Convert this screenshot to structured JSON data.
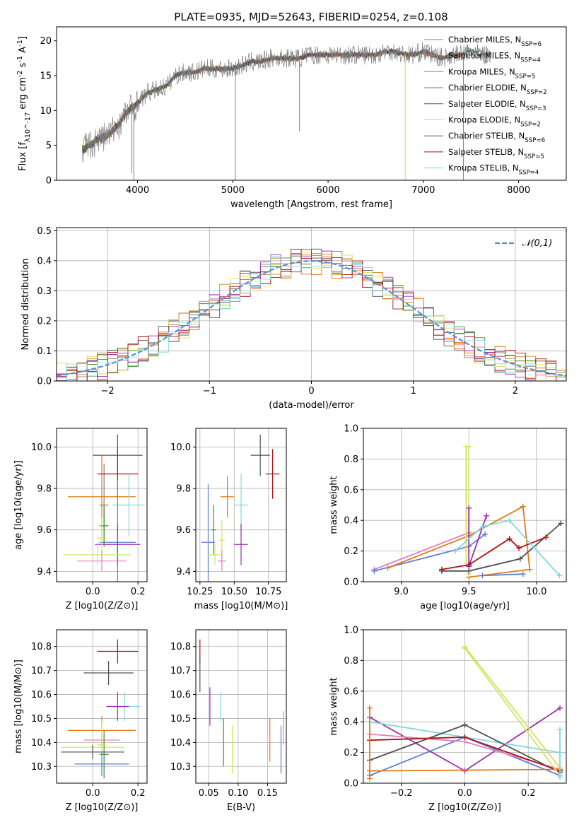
{
  "title": "PLATE=0935, MJD=52643, FIBERID=0254, z=0.108",
  "colors": {
    "chabrier_miles": "#808080",
    "salpeter_miles": "#e8632d",
    "kroupa_miles": "#e07b1a",
    "chabrier_elodie": "#3a8c3a",
    "salpeter_elodie": "#9a30b0",
    "kroupa_elodie": "#d8e050",
    "chabrier_stelib": "#505050",
    "salpeter_stelib": "#b01010",
    "kroupa_stelib": "#80d8e0",
    "blue": "#5b7fd6",
    "pink": "#e080c0",
    "lime": "#c8e870",
    "normal": "#5b8fd6"
  },
  "chart_data": [
    {
      "id": "spectrum",
      "type": "line",
      "xlabel": "wavelength [Angstrom, rest frame]",
      "ylabel": "Flux [f_λ10^-17 erg cm^-2 s^-1 A^-1]",
      "xlim": [
        3150,
        8500
      ],
      "ylim": [
        0,
        22
      ],
      "xticks": [
        4000,
        5000,
        6000,
        7000,
        8000
      ],
      "yticks": [
        0,
        5,
        10,
        15,
        20
      ],
      "grid": false,
      "legend_position": "top-right",
      "continuum": [
        [
          3420,
          4.5
        ],
        [
          3500,
          5
        ],
        [
          3600,
          6
        ],
        [
          3700,
          6.5
        ],
        [
          3800,
          8
        ],
        [
          3900,
          10
        ],
        [
          4000,
          11
        ],
        [
          4100,
          12.5
        ],
        [
          4200,
          13
        ],
        [
          4300,
          13.5
        ],
        [
          4400,
          15
        ],
        [
          4500,
          15.5
        ],
        [
          4600,
          15.5
        ],
        [
          4700,
          16
        ],
        [
          4800,
          16
        ],
        [
          4900,
          16
        ],
        [
          5000,
          16
        ],
        [
          5100,
          16.5
        ],
        [
          5200,
          17
        ],
        [
          5300,
          17
        ],
        [
          5400,
          17.5
        ],
        [
          5500,
          17.5
        ],
        [
          5600,
          17.5
        ],
        [
          5700,
          17.5
        ],
        [
          5800,
          18
        ],
        [
          5900,
          18
        ],
        [
          6000,
          18
        ],
        [
          6100,
          18
        ],
        [
          6200,
          18
        ],
        [
          6300,
          18
        ],
        [
          6400,
          18
        ],
        [
          6500,
          18
        ],
        [
          6600,
          18.5
        ],
        [
          6700,
          18.5
        ],
        [
          6800,
          18
        ],
        [
          6900,
          18
        ],
        [
          7000,
          18.5
        ],
        [
          7100,
          18
        ],
        [
          7200,
          17.5
        ],
        [
          7300,
          18
        ],
        [
          7400,
          18
        ],
        [
          7500,
          18.5
        ],
        [
          7600,
          18
        ],
        [
          7700,
          18
        ]
      ],
      "legend": [
        {
          "label": "Chabrier MILES, N_SSP=6",
          "color_key": "chabrier_miles"
        },
        {
          "label": "Salpeter MILES, N_SSP=4",
          "color_key": "salpeter_miles"
        },
        {
          "label": "Kroupa MILES, N_SSP=5",
          "color_key": "kroupa_miles"
        },
        {
          "label": "Chabrier ELODIE, N_SSP=2",
          "color_key": "chabrier_elodie"
        },
        {
          "label": "Salpeter ELODIE, N_SSP=3",
          "color_key": "salpeter_elodie"
        },
        {
          "label": "Kroupa ELODIE, N_SSP=2",
          "color_key": "kroupa_elodie"
        },
        {
          "label": "Chabrier STELIB, N_SSP=6",
          "color_key": "chabrier_stelib"
        },
        {
          "label": "Salpeter STELIB, N_SSP=5",
          "color_key": "salpeter_stelib"
        },
        {
          "label": "Kroupa STELIB, N_SSP=4",
          "color_key": "kroupa_stelib"
        }
      ]
    },
    {
      "id": "residuals",
      "type": "line",
      "xlabel": "(data-model)/error",
      "ylabel": "Normed distribution",
      "xlim": [
        -2.5,
        2.5
      ],
      "ylim": [
        0,
        0.51
      ],
      "xticks": [
        -2,
        -1,
        0,
        1,
        2
      ],
      "yticks": [
        0.0,
        0.1,
        0.2,
        0.3,
        0.4,
        0.5
      ],
      "grid": true,
      "legend_position": "top-right",
      "legend": [
        {
          "label": "𝒩(0,1)",
          "color_key": "normal"
        }
      ],
      "bin_width": 0.1
    },
    {
      "id": "age_vs_Z",
      "type": "scatter",
      "xlabel": "Z [log10(Z/Z⊙)]",
      "ylabel": "age [log10(age/yr)]",
      "xlim": [
        -0.16,
        0.24
      ],
      "ylim": [
        9.35,
        10.09
      ],
      "xticks": [
        0.0,
        0.2
      ],
      "yticks": [
        9.4,
        9.6,
        9.8,
        10.0
      ],
      "grid": true,
      "points": [
        {
          "c": "chabrier_miles",
          "x": 0.05,
          "xerr": 0.02,
          "y": 9.72,
          "yerr": 0.2
        },
        {
          "c": "kroupa_miles",
          "x": 0.04,
          "xerr": 0.15,
          "y": 9.76,
          "yerr": 0.2
        },
        {
          "c": "chabrier_stelib",
          "x": 0.11,
          "xerr": 0.11,
          "y": 9.96,
          "yerr": 0.1
        },
        {
          "c": "salpeter_stelib",
          "x": 0.11,
          "xerr": 0.09,
          "y": 9.87,
          "yerr": 0.12
        },
        {
          "c": "kroupa_stelib",
          "x": 0.16,
          "xerr": 0.07,
          "y": 9.72,
          "yerr": 0.15
        },
        {
          "c": "blue",
          "x": 0.11,
          "xerr": 0.08,
          "y": 9.54,
          "yerr": 0.3
        },
        {
          "c": "salpeter_elodie",
          "x": 0.11,
          "xerr": 0.1,
          "y": 9.53,
          "yerr": 0.1
        },
        {
          "c": "chabrier_elodie",
          "x": 0.05,
          "xerr": 0.02,
          "y": 9.62,
          "yerr": 0.1
        },
        {
          "c": "kroupa_elodie",
          "x": 0.04,
          "xerr": 0.02,
          "y": 9.56,
          "yerr": 0.1
        },
        {
          "c": "pink",
          "x": 0.04,
          "xerr": 0.11,
          "y": 9.45,
          "yerr": 0.05
        },
        {
          "c": "lime",
          "x": 0.02,
          "xerr": 0.15,
          "y": 9.48,
          "yerr": 0.05
        }
      ]
    },
    {
      "id": "age_vs_mass",
      "type": "scatter",
      "xlabel": "mass [log10(M/M⊙)]",
      "ylabel": "",
      "xlim": [
        10.22,
        10.88
      ],
      "ylim": [
        9.35,
        10.09
      ],
      "xticks": [
        10.25,
        10.5,
        10.75
      ],
      "xticklabels": [
        "10.25",
        "10.50",
        "10.75"
      ],
      "yticks": [
        9.4,
        9.6,
        9.8,
        10.0
      ],
      "grid": true,
      "points": [
        {
          "c": "chabrier_stelib",
          "x": 10.69,
          "xerr": 0.07,
          "y": 9.96,
          "yerr": 0.1
        },
        {
          "c": "salpeter_stelib",
          "x": 10.78,
          "xerr": 0.05,
          "y": 9.87,
          "yerr": 0.12
        },
        {
          "c": "kroupa_miles",
          "x": 10.45,
          "xerr": 0.05,
          "y": 9.76,
          "yerr": 0.1
        },
        {
          "c": "kroupa_stelib",
          "x": 10.55,
          "xerr": 0.05,
          "y": 9.72,
          "yerr": 0.15
        },
        {
          "c": "blue",
          "x": 10.31,
          "xerr": 0.05,
          "y": 9.54,
          "yerr": 0.28
        },
        {
          "c": "chabrier_elodie",
          "x": 10.35,
          "xerr": 0.02,
          "y": 9.6,
          "yerr": 0.12
        },
        {
          "c": "kroupa_elodie",
          "x": 10.41,
          "xerr": 0.02,
          "y": 9.55,
          "yerr": 0.1
        },
        {
          "c": "salpeter_elodie",
          "x": 10.55,
          "xerr": 0.05,
          "y": 9.53,
          "yerr": 0.1
        },
        {
          "c": "pink",
          "x": 10.41,
          "xerr": 0.03,
          "y": 9.45,
          "yerr": 0.05
        },
        {
          "c": "lime",
          "x": 10.36,
          "xerr": 0.05,
          "y": 9.48,
          "yerr": 0.05
        }
      ]
    },
    {
      "id": "weight_vs_age",
      "type": "line",
      "xlabel": "age [log10(age/yr)]",
      "ylabel": "mass weight",
      "xlim": [
        8.72,
        10.22
      ],
      "ylim": [
        0,
        1
      ],
      "xticks": [
        9.0,
        9.5,
        10.0
      ],
      "yticks": [
        0.0,
        0.2,
        0.4,
        0.6,
        0.8,
        1.0
      ],
      "grid": true,
      "series": [
        {
          "c": "pink",
          "points": [
            [
              8.8,
              0.08
            ],
            [
              9.5,
              0.32
            ]
          ]
        },
        {
          "c": "blue",
          "points": [
            [
              8.8,
              0.07
            ],
            [
              9.5,
              0.23
            ],
            [
              9.62,
              0.31
            ]
          ]
        },
        {
          "c": "kroupa_miles",
          "points": [
            [
              8.9,
              0.09
            ],
            [
              9.5,
              0.3
            ],
            [
              9.9,
              0.49
            ],
            [
              9.95,
              0.08
            ],
            [
              9.5,
              0.03
            ]
          ]
        },
        {
          "c": "lime",
          "points": [
            [
              9.5,
              0.88
            ],
            [
              9.5,
              0.05
            ]
          ]
        },
        {
          "c": "kroupa_elodie",
          "points": [
            [
              9.48,
              0.88
            ],
            [
              9.48,
              0.12
            ]
          ]
        },
        {
          "c": "salpeter_elodie",
          "points": [
            [
              9.5,
              0.48
            ],
            [
              9.5,
              0.1
            ],
            [
              9.63,
              0.43
            ]
          ]
        },
        {
          "c": "chabrier_stelib",
          "points": [
            [
              9.3,
              0.07
            ],
            [
              9.5,
              0.07
            ],
            [
              9.88,
              0.15
            ],
            [
              10.18,
              0.38
            ]
          ]
        },
        {
          "c": "salpeter_stelib",
          "points": [
            [
              9.3,
              0.08
            ],
            [
              9.5,
              0.11
            ],
            [
              9.8,
              0.28
            ],
            [
              9.87,
              0.22
            ],
            [
              10.07,
              0.29
            ]
          ]
        },
        {
          "c": "kroupa_stelib",
          "points": [
            [
              9.4,
              0.2
            ],
            [
              9.6,
              0.36
            ],
            [
              9.8,
              0.4
            ],
            [
              10.17,
              0.04
            ]
          ]
        },
        {
          "c": "blue",
          "points": [
            [
              9.6,
              0.04
            ],
            [
              9.9,
              0.05
            ]
          ]
        }
      ]
    },
    {
      "id": "mass_vs_Z",
      "type": "scatter",
      "xlabel": "Z [log10(Z/Z⊙)]",
      "ylabel": "mass [log10(M/M⊙)]",
      "xlim": [
        -0.16,
        0.24
      ],
      "ylim": [
        10.23,
        10.87
      ],
      "xticks": [
        0.0,
        0.2
      ],
      "yticks": [
        10.3,
        10.4,
        10.5,
        10.6,
        10.7,
        10.8
      ],
      "grid": true,
      "points": [
        {
          "c": "salpeter_stelib",
          "x": 0.11,
          "xerr": 0.09,
          "y": 10.78,
          "yerr": 0.05
        },
        {
          "c": "chabrier_stelib",
          "x": 0.07,
          "xerr": 0.11,
          "y": 10.69,
          "yerr": 0.05
        },
        {
          "c": "kroupa_stelib",
          "x": 0.14,
          "xerr": 0.07,
          "y": 10.55,
          "yerr": 0.06
        },
        {
          "c": "salpeter_elodie",
          "x": 0.11,
          "xerr": 0.05,
          "y": 10.55,
          "yerr": 0.06
        },
        {
          "c": "kroupa_miles",
          "x": 0.04,
          "xerr": 0.15,
          "y": 10.45,
          "yerr": 0.06
        },
        {
          "c": "pink",
          "x": 0.04,
          "xerr": 0.08,
          "y": 10.41,
          "yerr": 0.03
        },
        {
          "c": "lime",
          "x": 0.0,
          "xerr": 0.14,
          "y": 10.38,
          "yerr": 0.03
        },
        {
          "c": "chabrier_elodie",
          "x": 0.05,
          "xerr": 0.02,
          "y": 10.35,
          "yerr": 0.1
        },
        {
          "c": "kroupa_elodie",
          "x": 0.04,
          "xerr": 0.02,
          "y": 10.39,
          "yerr": 0.1
        },
        {
          "c": "chabrier_stelib",
          "x": 0.0,
          "xerr": 0.14,
          "y": 10.36,
          "yerr": 0.03
        },
        {
          "c": "blue",
          "x": 0.04,
          "xerr": 0.12,
          "y": 10.31,
          "yerr": 0.05
        }
      ]
    },
    {
      "id": "mass_vs_ebv",
      "type": "scatter",
      "xlabel": "E(B-V)",
      "ylabel": "",
      "xlim": [
        0.028,
        0.182
      ],
      "ylim": [
        10.23,
        10.87
      ],
      "xticks": [
        0.05,
        0.1,
        0.15
      ],
      "xticklabels": [
        "0.05",
        "0.10",
        "0.15"
      ],
      "yticks": [
        10.3,
        10.4,
        10.5,
        10.6,
        10.7,
        10.8
      ],
      "grid": true,
      "points": [
        {
          "c": "salpeter_stelib",
          "x": 0.035,
          "y": 10.78,
          "yerr": 0.05
        },
        {
          "c": "chabrier_stelib",
          "x": 0.035,
          "y": 10.69,
          "yerr": 0.08
        },
        {
          "c": "salpeter_elodie",
          "x": 0.052,
          "y": 10.55,
          "yerr": 0.08
        },
        {
          "c": "kroupa_stelib",
          "x": 0.07,
          "y": 10.55,
          "yerr": 0.06
        },
        {
          "c": "chabrier_elodie",
          "x": 0.075,
          "y": 10.4,
          "yerr": 0.1
        },
        {
          "c": "kroupa_elodie",
          "x": 0.09,
          "y": 10.37,
          "yerr": 0.1
        },
        {
          "c": "kroupa_miles",
          "x": 0.154,
          "y": 10.41,
          "yerr": 0.09
        },
        {
          "c": "blue",
          "x": 0.173,
          "y": 10.37,
          "yerr": 0.1
        },
        {
          "c": "pink",
          "x": 0.177,
          "y": 10.46,
          "yerr": 0.07
        }
      ]
    },
    {
      "id": "weight_vs_Z",
      "type": "line",
      "xlabel": "Z [log10(Z/Z⊙)]",
      "ylabel": "mass weight",
      "xlim": [
        -0.32,
        0.32
      ],
      "ylim": [
        0,
        1
      ],
      "xticks": [
        -0.2,
        0.0,
        0.2
      ],
      "yticks": [
        0.0,
        0.2,
        0.4,
        0.6,
        0.8,
        1.0
      ],
      "grid": true,
      "series": [
        {
          "c": "salpeter_elodie",
          "points": [
            [
              -0.3,
              0.43
            ],
            [
              0.0,
              0.08
            ],
            [
              0.3,
              0.49
            ]
          ]
        },
        {
          "c": "kroupa_stelib",
          "points": [
            [
              -0.3,
              0.4
            ],
            [
              0.3,
              0.2
            ]
          ]
        },
        {
          "c": "chabrier_stelib",
          "points": [
            [
              -0.3,
              0.15
            ],
            [
              0.0,
              0.38
            ],
            [
              0.3,
              0.07
            ]
          ]
        },
        {
          "c": "blue",
          "points": [
            [
              -0.3,
              0.05
            ],
            [
              0.0,
              0.3
            ],
            [
              0.3,
              0.05
            ]
          ]
        },
        {
          "c": "pink",
          "points": [
            [
              -0.3,
              0.32
            ],
            [
              0.0,
              0.27
            ],
            [
              0.3,
              0.09
            ]
          ]
        },
        {
          "c": "salpeter_stelib",
          "points": [
            [
              -0.3,
              0.28
            ],
            [
              0.0,
              0.3
            ],
            [
              0.3,
              0.08
            ]
          ]
        },
        {
          "c": "kroupa_miles",
          "points": [
            [
              -0.3,
              0.08
            ],
            [
              0.3,
              0.09
            ]
          ]
        },
        {
          "c": "kroupa_miles",
          "points": [
            [
              -0.3,
              0.49
            ],
            [
              -0.3,
              0.03
            ]
          ]
        },
        {
          "c": "lime",
          "points": [
            [
              0.0,
              0.88
            ],
            [
              0.3,
              0.05
            ]
          ]
        },
        {
          "c": "kroupa_elodie",
          "points": [
            [
              0.0,
              0.89
            ],
            [
              0.3,
              0.1
            ]
          ]
        },
        {
          "c": "kroupa_stelib",
          "points": [
            [
              0.3,
              0.35
            ],
            [
              0.3,
              0.04
            ]
          ]
        }
      ]
    }
  ]
}
